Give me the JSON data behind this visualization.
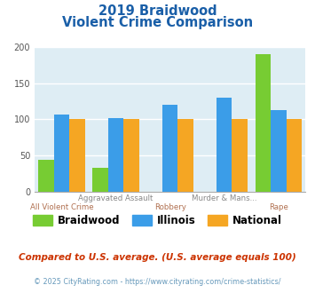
{
  "title_line1": "2019 Braidwood",
  "title_line2": "Violent Crime Comparison",
  "groups": [
    {
      "label_top": "",
      "label_bottom": "All Violent Crime",
      "braidwood": 44,
      "illinois": 107,
      "national": 100
    },
    {
      "label_top": "Aggravated Assault",
      "label_bottom": "",
      "braidwood": 33,
      "illinois": 102,
      "national": 100
    },
    {
      "label_top": "",
      "label_bottom": "Robbery",
      "braidwood": 0,
      "illinois": 120,
      "national": 100
    },
    {
      "label_top": "Murder & Mans...",
      "label_bottom": "",
      "braidwood": 0,
      "illinois": 130,
      "national": 100
    },
    {
      "label_top": "",
      "label_bottom": "Rape",
      "braidwood": 190,
      "illinois": 113,
      "national": 100
    }
  ],
  "color_braidwood": "#77cc33",
  "color_illinois": "#3b9de8",
  "color_national": "#f5a623",
  "ylim": [
    0,
    200
  ],
  "yticks": [
    0,
    50,
    100,
    150,
    200
  ],
  "bg_color": "#deedf4",
  "footnote1": "Compared to U.S. average. (U.S. average equals 100)",
  "footnote2": "© 2025 CityRating.com - https://www.cityrating.com/crime-statistics/",
  "title_color": "#1a5fa8",
  "label_top_color": "#888888",
  "label_bottom_color": "#b07050",
  "footnote1_color": "#cc3300",
  "footnote2_color": "#6699bb"
}
